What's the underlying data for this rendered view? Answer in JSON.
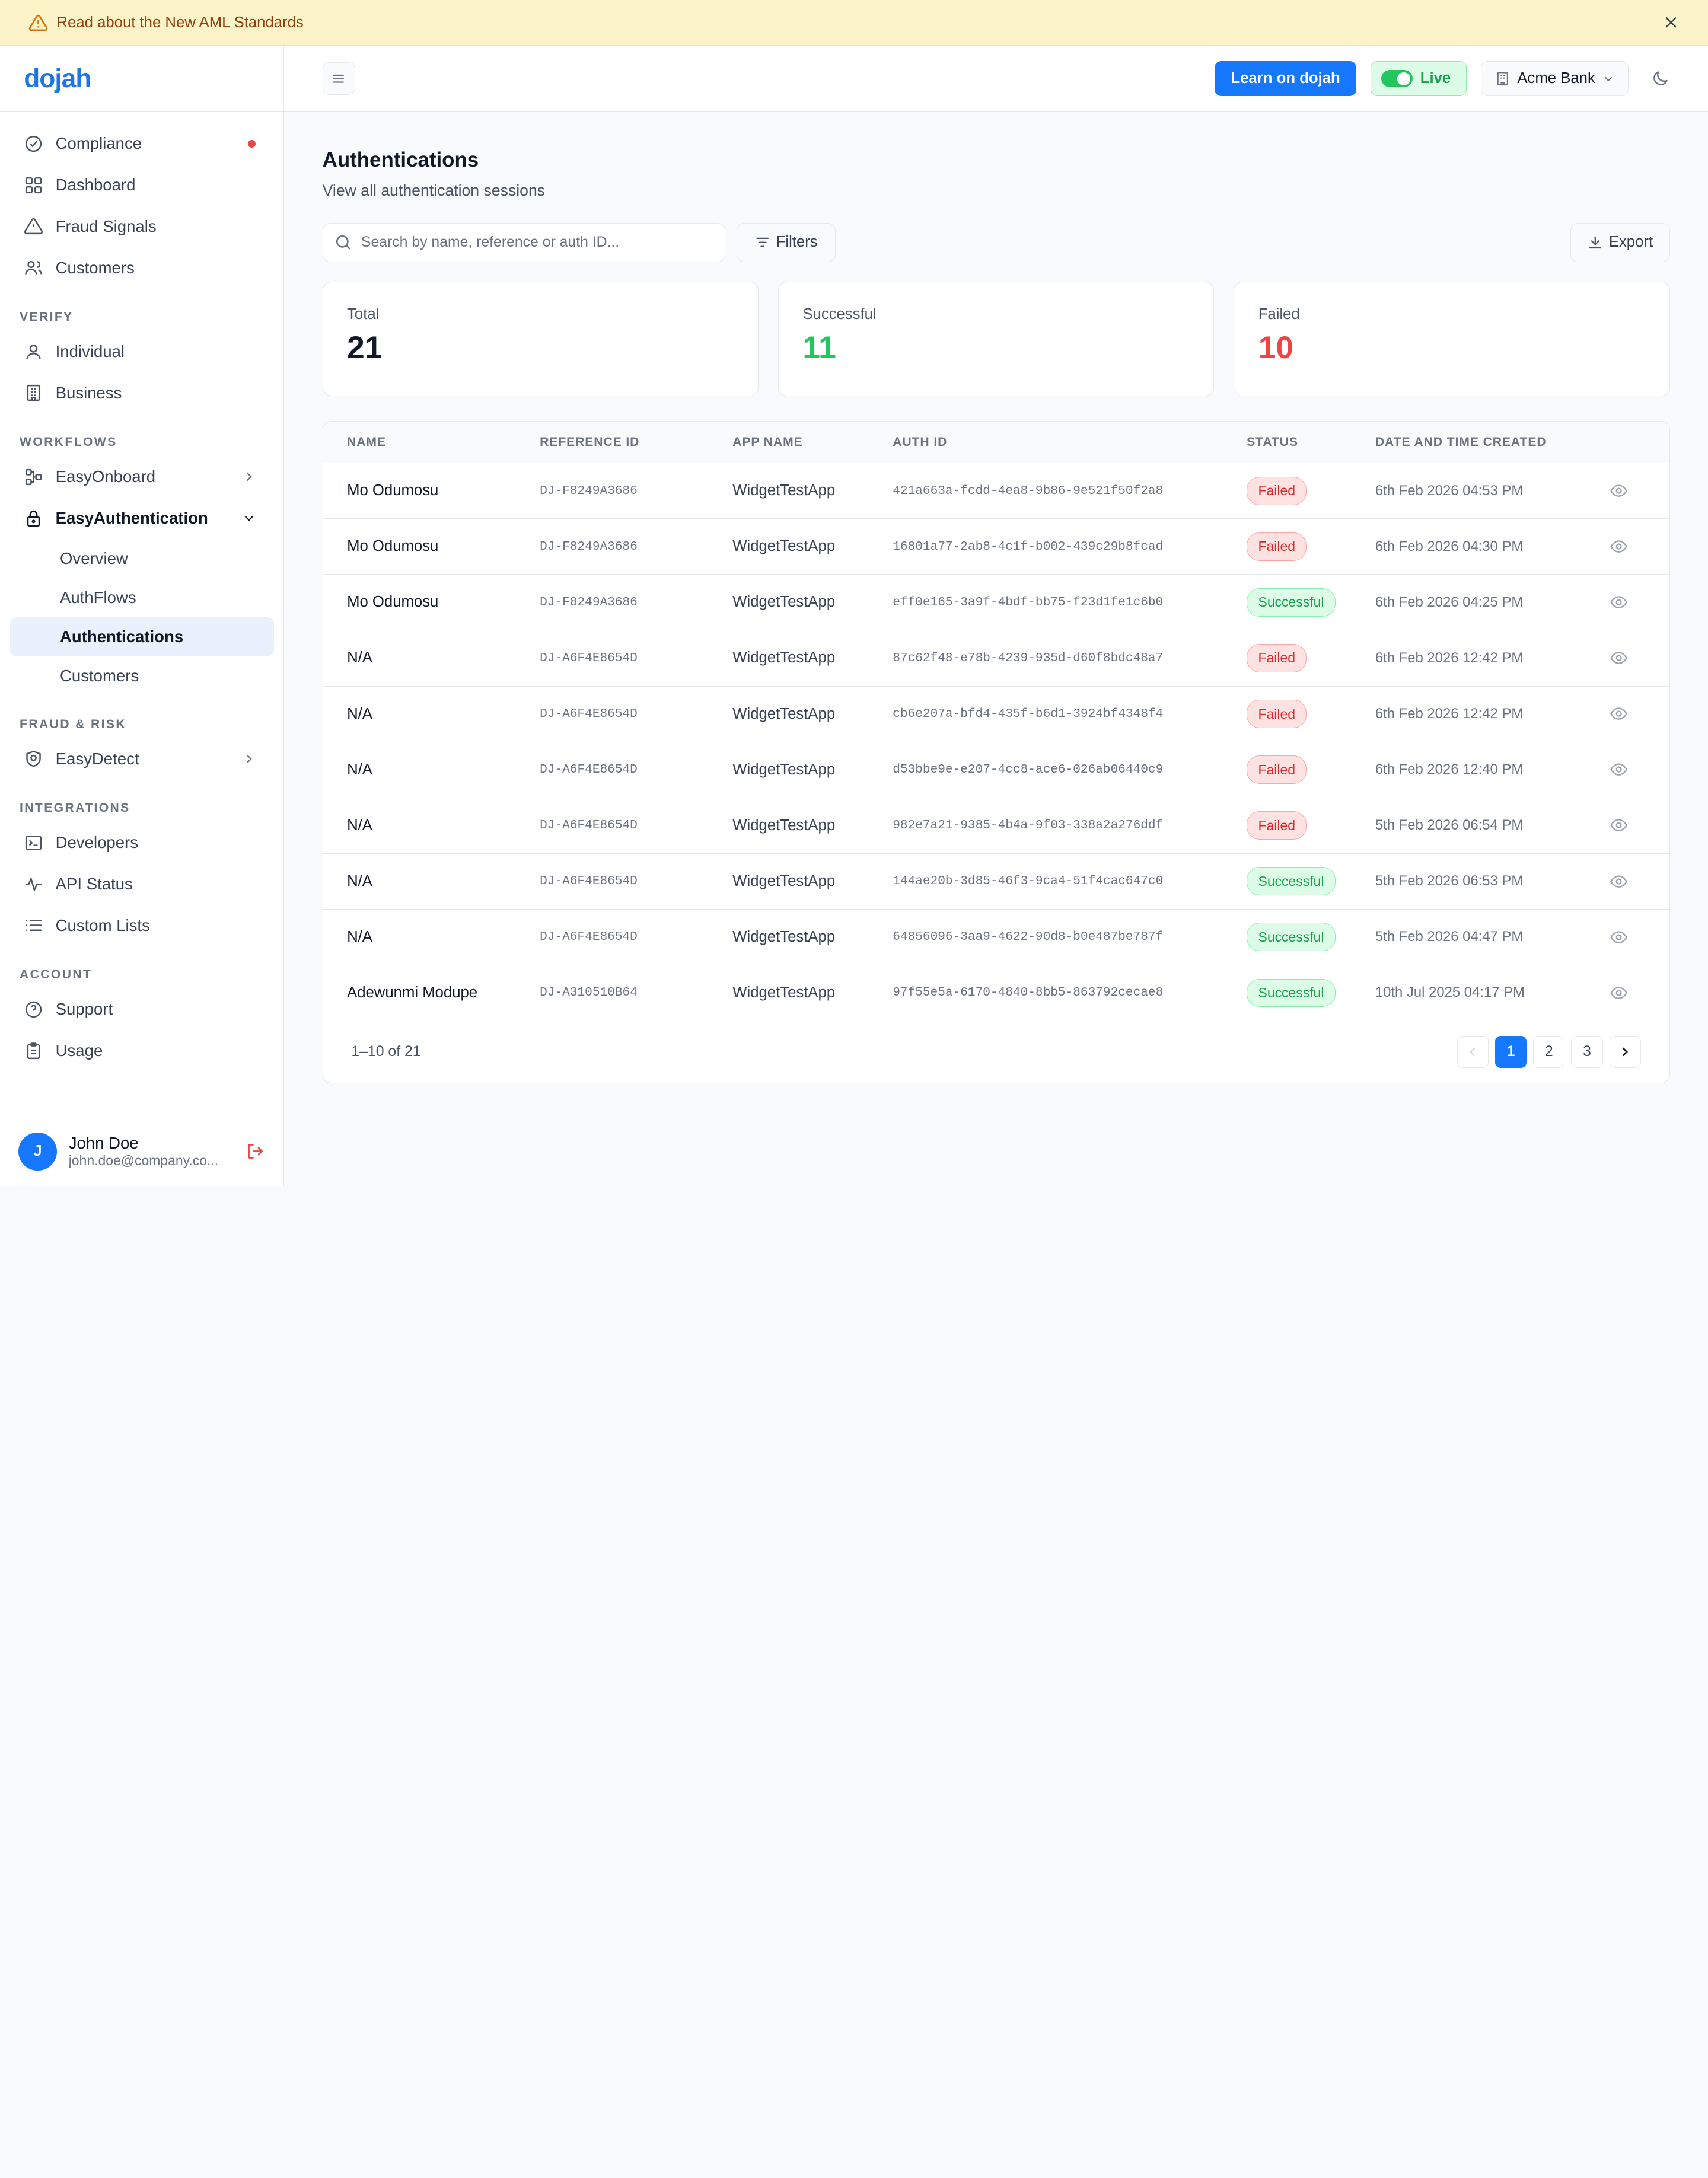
{
  "banner": {
    "text": "Read about the New AML Standards"
  },
  "brand": {
    "logo_text": "dojah",
    "accent": "#1677ff"
  },
  "sidebar": {
    "top_items": [
      {
        "label": "Compliance",
        "icon": "check-circle-icon"
      },
      {
        "label": "Dashboard",
        "icon": "grid-icon"
      },
      {
        "label": "Fraud Signals",
        "icon": "warning-icon"
      },
      {
        "label": "Customers",
        "icon": "users-icon"
      }
    ],
    "sections": {
      "verify": "VERIFY",
      "workflows": "WORKFLOWS",
      "fraud": "FRAUD & RISK",
      "integrations": "INTEGRATIONS",
      "account": "ACCOUNT"
    },
    "verify_items": [
      {
        "label": "Individual"
      },
      {
        "label": "Business"
      }
    ],
    "workflow_items": [
      {
        "label": "EasyOnboard"
      },
      {
        "label": "EasyAuthentication"
      }
    ],
    "auth_sub_items": [
      {
        "label": "Overview"
      },
      {
        "label": "AuthFlows"
      },
      {
        "label": "Authentications"
      },
      {
        "label": "Customers"
      }
    ],
    "fraud_items": [
      {
        "label": "EasyDetect"
      }
    ],
    "integration_items": [
      {
        "label": "Developers"
      },
      {
        "label": "API Status"
      },
      {
        "label": "Custom Lists"
      }
    ],
    "account_items": [
      {
        "label": "Support"
      },
      {
        "label": "Usage"
      }
    ],
    "user": {
      "initial": "J",
      "name": "John Doe",
      "email": "john.doe@company.co..."
    }
  },
  "topbar": {
    "learn_label": "Learn on dojah",
    "live_label": "Live",
    "org_label": "Acme Bank"
  },
  "page": {
    "title": "Authentications",
    "subtitle": "View all authentication sessions",
    "search_placeholder": "Search by name, reference or auth ID...",
    "filters_label": "Filters",
    "export_label": "Export"
  },
  "stats": [
    {
      "label": "Total",
      "value": "21",
      "color": "#111827"
    },
    {
      "label": "Successful",
      "value": "11",
      "color": "#22c55e"
    },
    {
      "label": "Failed",
      "value": "10",
      "color": "#ef4444"
    }
  ],
  "table": {
    "headers": [
      "NAME",
      "REFERENCE ID",
      "APP NAME",
      "AUTH ID",
      "STATUS",
      "DATE AND TIME CREATED"
    ],
    "rows": [
      {
        "name": "Mo Odumosu",
        "ref": "DJ-F8249A3686",
        "app": "WidgetTestApp",
        "auth": "421a663a-fcdd-4ea8-9b86-9e521f50f2a8",
        "status": "Failed",
        "date": "6th Feb 2026 04:53 PM"
      },
      {
        "name": "Mo Odumosu",
        "ref": "DJ-F8249A3686",
        "app": "WidgetTestApp",
        "auth": "16801a77-2ab8-4c1f-b002-439c29b8fcad",
        "status": "Failed",
        "date": "6th Feb 2026 04:30 PM"
      },
      {
        "name": "Mo Odumosu",
        "ref": "DJ-F8249A3686",
        "app": "WidgetTestApp",
        "auth": "eff0e165-3a9f-4bdf-bb75-f23d1fe1c6b0",
        "status": "Successful",
        "date": "6th Feb 2026 04:25 PM"
      },
      {
        "name": "N/A",
        "ref": "DJ-A6F4E8654D",
        "app": "WidgetTestApp",
        "auth": "87c62f48-e78b-4239-935d-d60f8bdc48a7",
        "status": "Failed",
        "date": "6th Feb 2026 12:42 PM"
      },
      {
        "name": "N/A",
        "ref": "DJ-A6F4E8654D",
        "app": "WidgetTestApp",
        "auth": "cb6e207a-bfd4-435f-b6d1-3924bf4348f4",
        "status": "Failed",
        "date": "6th Feb 2026 12:42 PM"
      },
      {
        "name": "N/A",
        "ref": "DJ-A6F4E8654D",
        "app": "WidgetTestApp",
        "auth": "d53bbe9e-e207-4cc8-ace6-026ab06440c9",
        "status": "Failed",
        "date": "6th Feb 2026 12:40 PM"
      },
      {
        "name": "N/A",
        "ref": "DJ-A6F4E8654D",
        "app": "WidgetTestApp",
        "auth": "982e7a21-9385-4b4a-9f03-338a2a276ddf",
        "status": "Failed",
        "date": "5th Feb 2026 06:54 PM"
      },
      {
        "name": "N/A",
        "ref": "DJ-A6F4E8654D",
        "app": "WidgetTestApp",
        "auth": "144ae20b-3d85-46f3-9ca4-51f4cac647c0",
        "status": "Successful",
        "date": "5th Feb 2026 06:53 PM"
      },
      {
        "name": "N/A",
        "ref": "DJ-A6F4E8654D",
        "app": "WidgetTestApp",
        "auth": "64856096-3aa9-4622-90d8-b0e487be787f",
        "status": "Successful",
        "date": "5th Feb 2026 04:47 PM"
      },
      {
        "name": "Adewunmi Modupe",
        "ref": "DJ-A310510B64",
        "app": "WidgetTestApp",
        "auth": "97f55e5a-6170-4840-8bb5-863792cecae8",
        "status": "Successful",
        "date": "10th Jul 2025 04:17 PM"
      }
    ]
  },
  "pagination": {
    "range": "1–10 of 21",
    "pages": [
      "1",
      "2",
      "3"
    ],
    "current": "1"
  }
}
